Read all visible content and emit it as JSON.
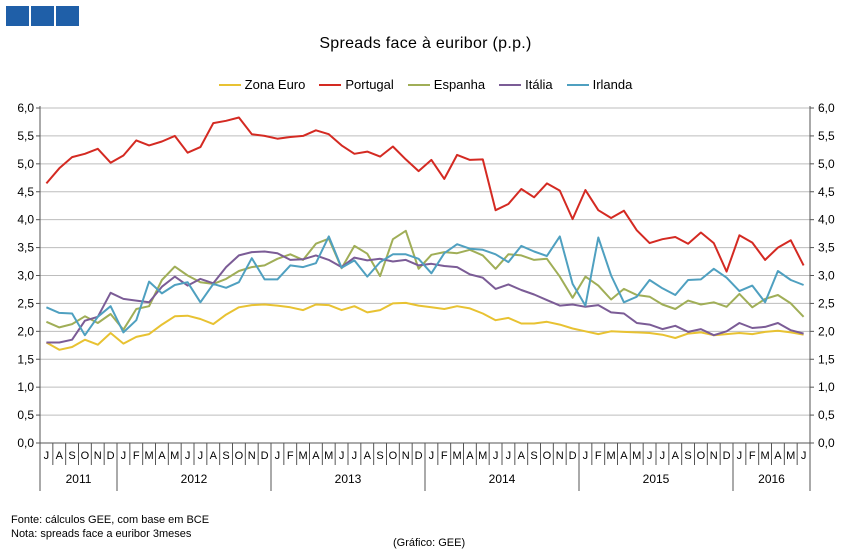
{
  "logo_icon": "three-blue-squares",
  "chart_data": {
    "type": "line",
    "title": "Spreads face à euribor (p.p.)",
    "ylim": [
      0,
      6
    ],
    "ytick_labels": [
      "0,0",
      "0,5",
      "1,0",
      "1,5",
      "2,0",
      "2,5",
      "3,0",
      "3,5",
      "4,0",
      "4,5",
      "5,0",
      "5,5",
      "6,0"
    ],
    "grid": true,
    "legend_position": "top",
    "months": [
      "J",
      "A",
      "S",
      "O",
      "N",
      "D",
      "J",
      "F",
      "M",
      "A",
      "M",
      "J",
      "J",
      "A",
      "S",
      "O",
      "N",
      "D",
      "J",
      "F",
      "M",
      "A",
      "M",
      "J",
      "J",
      "A",
      "S",
      "O",
      "N",
      "D",
      "J",
      "F",
      "M",
      "A",
      "M",
      "J",
      "J",
      "A",
      "S",
      "O",
      "N",
      "D",
      "J",
      "F",
      "M",
      "A",
      "M",
      "J",
      "J",
      "A",
      "S",
      "O",
      "N",
      "D",
      "J",
      "F",
      "M",
      "A",
      "M",
      "J"
    ],
    "years": [
      {
        "label": "2011",
        "months": 6
      },
      {
        "label": "2012",
        "months": 12
      },
      {
        "label": "2013",
        "months": 12
      },
      {
        "label": "2014",
        "months": 12
      },
      {
        "label": "2015",
        "months": 12
      },
      {
        "label": "2016",
        "months": 6
      }
    ],
    "series": [
      {
        "name": "Zona Euro",
        "color": "#e8c232",
        "values": [
          1.8,
          1.67,
          1.72,
          1.85,
          1.76,
          1.97,
          1.78,
          1.9,
          1.95,
          2.12,
          2.27,
          2.28,
          2.22,
          2.13,
          2.3,
          2.43,
          2.47,
          2.48,
          2.46,
          2.43,
          2.38,
          2.48,
          2.47,
          2.38,
          2.45,
          2.34,
          2.38,
          2.5,
          2.51,
          2.46,
          2.43,
          2.4,
          2.45,
          2.41,
          2.32,
          2.2,
          2.24,
          2.14,
          2.14,
          2.17,
          2.12,
          2.05,
          2.0,
          1.95,
          2.0,
          1.99,
          1.98,
          1.97,
          1.94,
          1.88,
          1.96,
          1.98,
          1.93,
          1.95,
          1.97,
          1.95,
          1.99,
          2.01,
          1.98,
          1.94
        ]
      },
      {
        "name": "Portugal",
        "color": "#d42a22",
        "values": [
          4.65,
          4.92,
          5.12,
          5.18,
          5.27,
          5.02,
          5.15,
          5.42,
          5.33,
          5.4,
          5.5,
          5.2,
          5.3,
          5.73,
          5.77,
          5.83,
          5.53,
          5.5,
          5.45,
          5.48,
          5.5,
          5.6,
          5.53,
          5.33,
          5.18,
          5.22,
          5.13,
          5.31,
          5.08,
          4.87,
          5.07,
          4.73,
          5.16,
          5.07,
          5.08,
          4.17,
          4.28,
          4.55,
          4.4,
          4.65,
          4.52,
          4.01,
          4.53,
          4.17,
          4.03,
          4.16,
          3.81,
          3.58,
          3.65,
          3.69,
          3.57,
          3.77,
          3.58,
          3.07,
          3.72,
          3.59,
          3.28,
          3.5,
          3.63,
          3.18
        ]
      },
      {
        "name": "Espanha",
        "color": "#a0ae57",
        "values": [
          2.17,
          2.07,
          2.13,
          2.27,
          2.15,
          2.31,
          2.03,
          2.4,
          2.45,
          2.92,
          3.16,
          3.0,
          2.88,
          2.85,
          2.94,
          3.08,
          3.15,
          3.18,
          3.3,
          3.38,
          3.28,
          3.57,
          3.66,
          3.13,
          3.53,
          3.39,
          2.99,
          3.65,
          3.8,
          3.12,
          3.37,
          3.42,
          3.4,
          3.46,
          3.36,
          3.12,
          3.38,
          3.36,
          3.28,
          3.3,
          2.98,
          2.6,
          2.98,
          2.82,
          2.57,
          2.76,
          2.65,
          2.62,
          2.48,
          2.4,
          2.55,
          2.48,
          2.52,
          2.44,
          2.67,
          2.43,
          2.58,
          2.65,
          2.5,
          2.26
        ]
      },
      {
        "name": "Itália",
        "color": "#7b5c96",
        "values": [
          1.8,
          1.8,
          1.85,
          2.19,
          2.26,
          2.69,
          2.58,
          2.55,
          2.52,
          2.8,
          2.98,
          2.82,
          2.94,
          2.86,
          3.15,
          3.36,
          3.42,
          3.43,
          3.4,
          3.28,
          3.29,
          3.36,
          3.28,
          3.15,
          3.32,
          3.27,
          3.3,
          3.25,
          3.28,
          3.18,
          3.21,
          3.17,
          3.15,
          3.02,
          2.96,
          2.76,
          2.84,
          2.74,
          2.66,
          2.56,
          2.46,
          2.48,
          2.44,
          2.47,
          2.34,
          2.32,
          2.15,
          2.12,
          2.04,
          2.1,
          1.99,
          2.04,
          1.93,
          2.0,
          2.15,
          2.06,
          2.08,
          2.15,
          2.02,
          1.96
        ]
      },
      {
        "name": "Irlanda",
        "color": "#4fa0c0",
        "values": [
          2.43,
          2.33,
          2.32,
          1.93,
          2.26,
          2.45,
          1.98,
          2.2,
          2.89,
          2.68,
          2.83,
          2.88,
          2.52,
          2.85,
          2.78,
          2.88,
          3.31,
          2.93,
          2.93,
          3.18,
          3.15,
          3.22,
          3.7,
          3.14,
          3.27,
          2.98,
          3.24,
          3.38,
          3.38,
          3.3,
          3.04,
          3.4,
          3.56,
          3.48,
          3.46,
          3.38,
          3.24,
          3.53,
          3.43,
          3.35,
          3.7,
          2.85,
          2.46,
          3.68,
          3.0,
          2.52,
          2.62,
          2.92,
          2.77,
          2.65,
          2.92,
          2.93,
          3.12,
          2.96,
          2.72,
          2.82,
          2.52,
          3.08,
          2.92,
          2.83
        ]
      }
    ]
  },
  "notes": {
    "source": "Fonte: cálculos GEE, com base em BCE",
    "note": "Nota: spreads face a euribor 3meses",
    "credit": "(Gráfico: GEE)"
  }
}
